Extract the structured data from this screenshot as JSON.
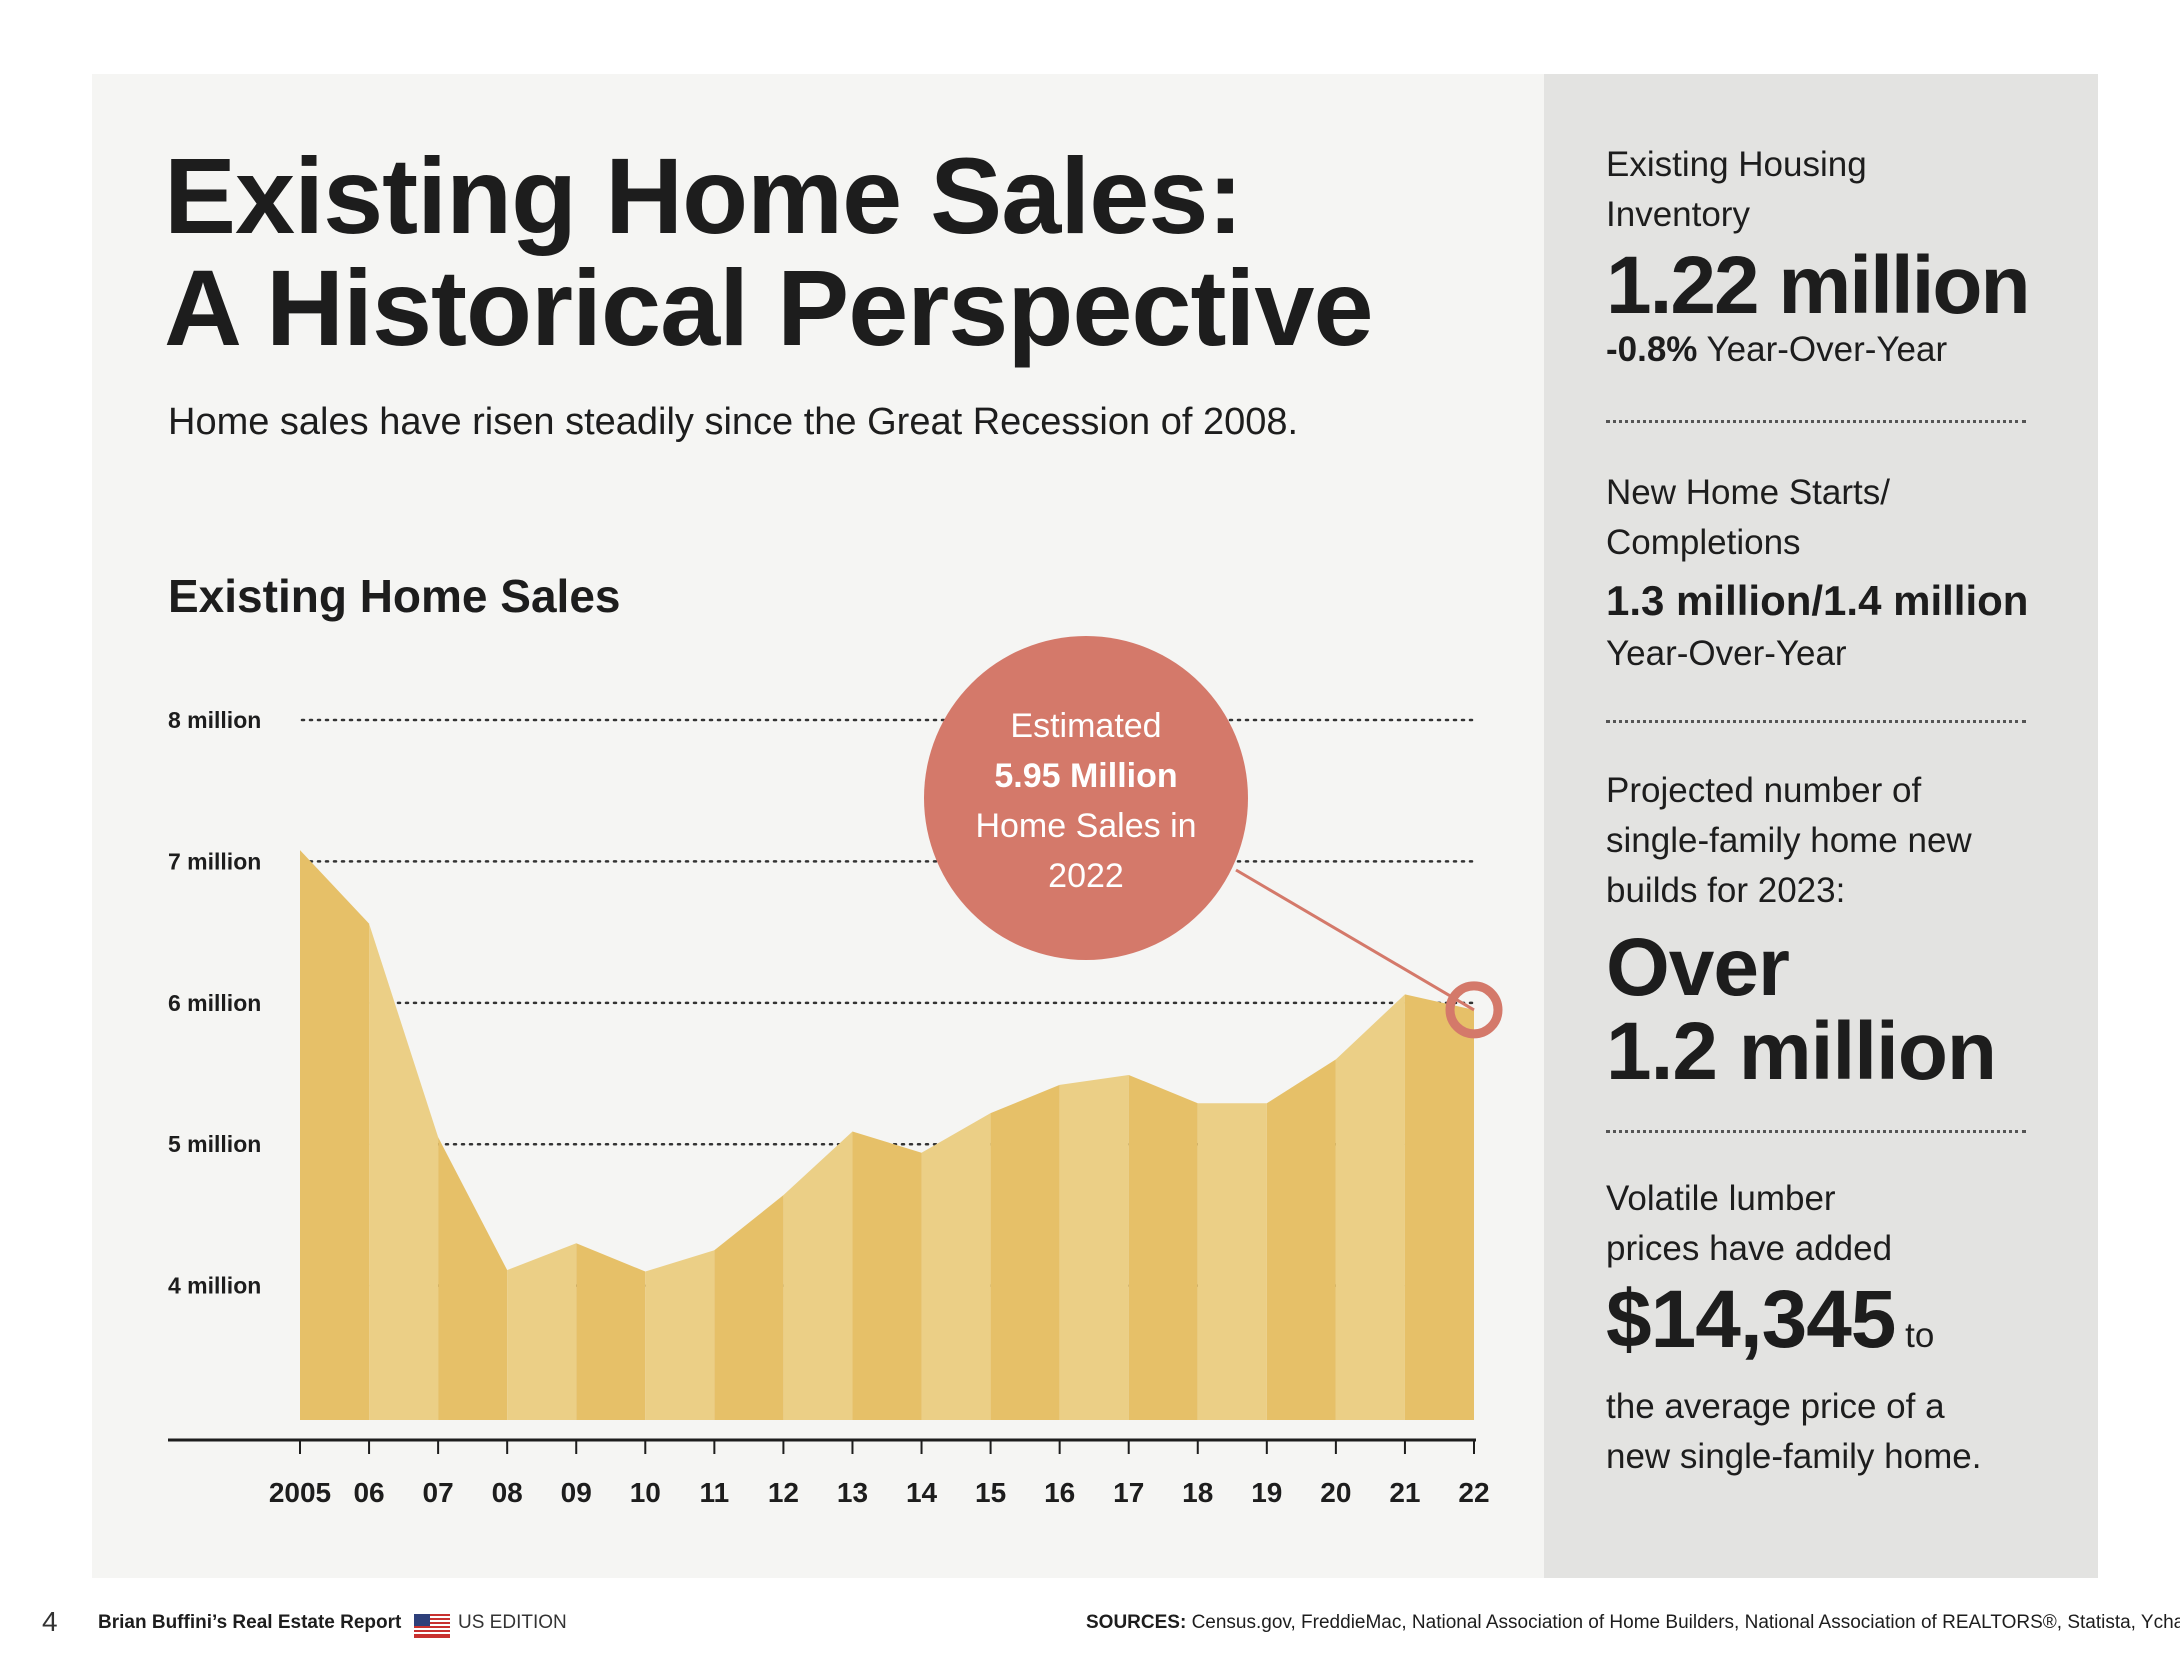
{
  "header": {
    "title_line1": "Existing Home Sales:",
    "title_line2": "A Historical Perspective",
    "subtitle": "Home sales have risen steadily since the Great Recession of 2008."
  },
  "chart_title": "Existing Home Sales",
  "chart_data": {
    "type": "area",
    "title": "Existing Home Sales",
    "categories": [
      "2005",
      "06",
      "07",
      "08",
      "09",
      "10",
      "11",
      "12",
      "13",
      "14",
      "15",
      "16",
      "17",
      "18",
      "19",
      "20",
      "21",
      "22"
    ],
    "values": [
      7.08,
      6.56,
      5.05,
      4.11,
      4.3,
      4.1,
      4.25,
      4.64,
      5.09,
      4.94,
      5.22,
      5.42,
      5.49,
      5.29,
      5.29,
      5.6,
      6.06,
      5.95
    ],
    "y_ticks": [
      {
        "value": 8,
        "label": "8 million"
      },
      {
        "value": 7,
        "label": "7 million"
      },
      {
        "value": 6,
        "label": "6 million"
      },
      {
        "value": 5,
        "label": "5 million"
      },
      {
        "value": 4,
        "label": "4 million"
      }
    ],
    "ylim": [
      3.05,
      8
    ],
    "unit": "million home sales",
    "grid": "dotted horizontal",
    "colors": {
      "area_dark": "#e6c068",
      "area_light": "#ebcf86",
      "highlight": "#d4796a"
    },
    "annotation": {
      "target": "22",
      "line1": "Estimated",
      "line2": "5.95 Million",
      "line3": "Home Sales in",
      "line4": "2022"
    }
  },
  "sidebar": {
    "inventory": {
      "label_line1": "Existing Housing",
      "label_line2": "Inventory",
      "value": "1.22 million",
      "change": "-0.8%",
      "change_suffix": " Year-Over-Year"
    },
    "starts": {
      "label_line1": "New Home Starts/",
      "label_line2": "Completions",
      "value": "1.3 million/1.4 million",
      "suffix": "Year-Over-Year"
    },
    "projected": {
      "label_line1": "Projected number of",
      "label_line2": "single-family home new",
      "label_line3": "builds for 2023:",
      "value_line1": "Over",
      "value_line2": "1.2 million"
    },
    "lumber": {
      "label_line1": "Volatile lumber",
      "label_line2": "prices have added",
      "value": "$14,345",
      "value_suffix": " to",
      "label_line3": "the average price of a",
      "label_line4": "new single-family home."
    }
  },
  "footer": {
    "page_number": "4",
    "brand": "Brian Buffini’s Real Estate Report",
    "edition": "US EDITION",
    "sources_label": "SOURCES:",
    "sources_text": " Census.gov, FreddieMac, National Association of Home Builders, National Association of REALTORS®, Statista, Ycharts.com"
  }
}
